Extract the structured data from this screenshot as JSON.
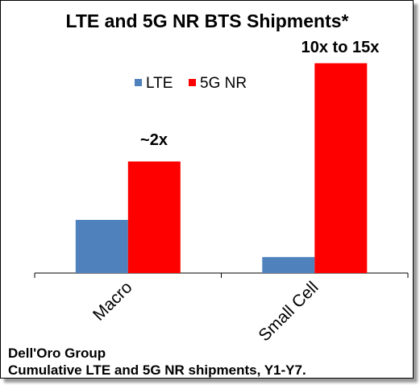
{
  "chart_data": {
    "type": "bar",
    "title": "LTE and 5G NR BTS Shipments*",
    "categories": [
      "Macro",
      "Small Cell"
    ],
    "series": [
      {
        "name": "LTE",
        "color": "#4f81bd",
        "values": [
          1.0,
          0.3
        ]
      },
      {
        "name": "5G NR",
        "color": "#ff0000",
        "values": [
          2.1,
          3.95
        ]
      }
    ],
    "annotations": [
      "~2x",
      "10x to 15x"
    ],
    "ylim": [
      0,
      4.2
    ],
    "grid": false,
    "legend_position": "top-left"
  },
  "footer": {
    "line1": "Dell'Oro Group",
    "line2": "Cumulative LTE and 5G NR shipments, Y1-Y7."
  }
}
